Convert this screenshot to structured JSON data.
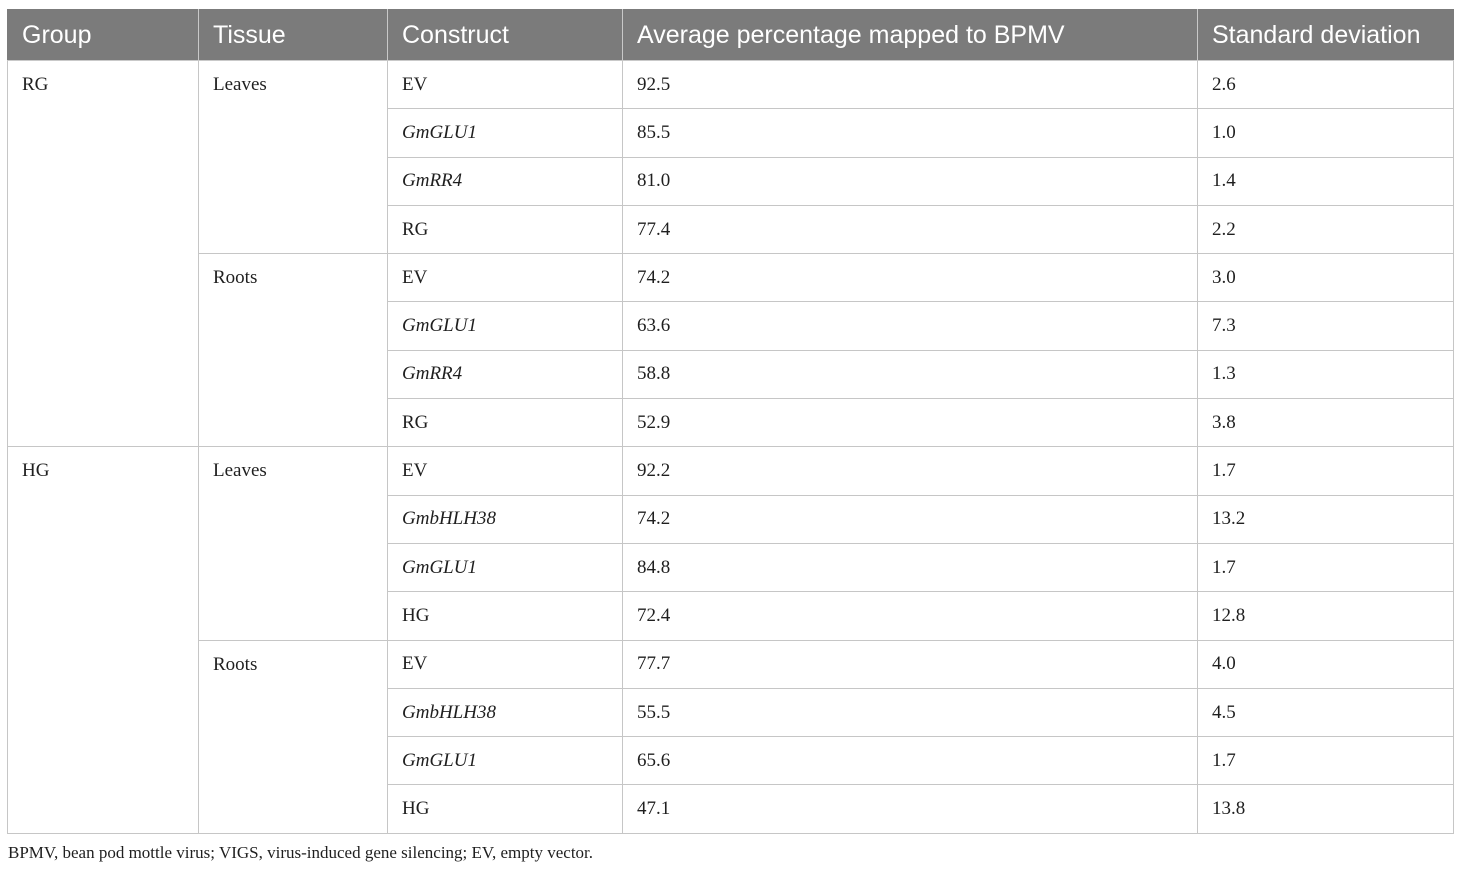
{
  "table": {
    "headers": [
      "Group",
      "Tissue",
      "Construct",
      "Average percentage mapped to BPMV",
      "Standard deviation"
    ],
    "groups": [
      {
        "group": "RG",
        "tissues": [
          {
            "tissue": "Leaves",
            "rows": [
              {
                "construct": "EV",
                "italic": false,
                "average": "92.5",
                "sd": "2.6"
              },
              {
                "construct": "GmGLU1",
                "italic": true,
                "average": "85.5",
                "sd": "1.0"
              },
              {
                "construct": "GmRR4",
                "italic": true,
                "average": "81.0",
                "sd": "1.4"
              },
              {
                "construct": "RG",
                "italic": false,
                "average": "77.4",
                "sd": "2.2"
              }
            ]
          },
          {
            "tissue": "Roots",
            "rows": [
              {
                "construct": "EV",
                "italic": false,
                "average": "74.2",
                "sd": "3.0"
              },
              {
                "construct": "GmGLU1",
                "italic": true,
                "average": "63.6",
                "sd": "7.3"
              },
              {
                "construct": "GmRR4",
                "italic": true,
                "average": "58.8",
                "sd": "1.3"
              },
              {
                "construct": "RG",
                "italic": false,
                "average": "52.9",
                "sd": "3.8"
              }
            ]
          }
        ]
      },
      {
        "group": "HG",
        "tissues": [
          {
            "tissue": "Leaves",
            "rows": [
              {
                "construct": "EV",
                "italic": false,
                "average": "92.2",
                "sd": "1.7"
              },
              {
                "construct": "GmbHLH38",
                "italic": true,
                "average": "74.2",
                "sd": "13.2"
              },
              {
                "construct": "GmGLU1",
                "italic": true,
                "average": "84.8",
                "sd": "1.7"
              },
              {
                "construct": "HG",
                "italic": false,
                "average": "72.4",
                "sd": "12.8"
              }
            ]
          },
          {
            "tissue": "Roots",
            "rows": [
              {
                "construct": "EV",
                "italic": false,
                "average": "77.7",
                "sd": "4.0"
              },
              {
                "construct": "GmbHLH38",
                "italic": true,
                "average": "55.5",
                "sd": "4.5"
              },
              {
                "construct": "GmGLU1",
                "italic": true,
                "average": "65.6",
                "sd": "1.7"
              },
              {
                "construct": "HG",
                "italic": false,
                "average": "47.1",
                "sd": "13.8"
              }
            ]
          }
        ]
      }
    ]
  },
  "footnote": "BPMV, bean pod mottle virus; VIGS, virus-induced gene silencing; EV, empty vector."
}
